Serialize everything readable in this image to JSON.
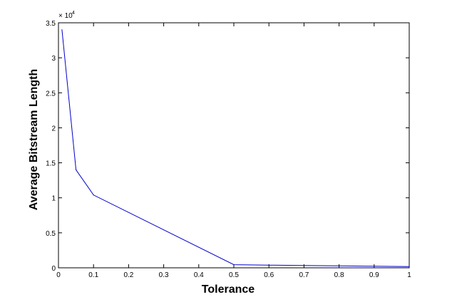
{
  "chart_data": {
    "type": "line",
    "title": "",
    "xlabel": "Tolerance",
    "ylabel": "Average Bitstream Length",
    "xlim": [
      0,
      1
    ],
    "ylim": [
      0,
      35000
    ],
    "y_multiplier_label": "× 10",
    "y_multiplier_exponent": "4",
    "x_ticks": [
      "0",
      "0.1",
      "0.2",
      "0.3",
      "0.4",
      "0.5",
      "0.6",
      "0.7",
      "0.8",
      "0.9",
      "1"
    ],
    "y_ticks": [
      "0",
      "0.5",
      "1",
      "1.5",
      "2",
      "2.5",
      "3",
      "3.5"
    ],
    "grid": false,
    "series": [
      {
        "color": "#0000cc",
        "x": [
          0.01,
          0.05,
          0.1,
          0.5,
          0.6,
          0.7,
          0.8,
          0.9,
          1.0
        ],
        "y": [
          34000,
          14000,
          10400,
          450,
          380,
          330,
          280,
          230,
          180
        ]
      }
    ]
  }
}
